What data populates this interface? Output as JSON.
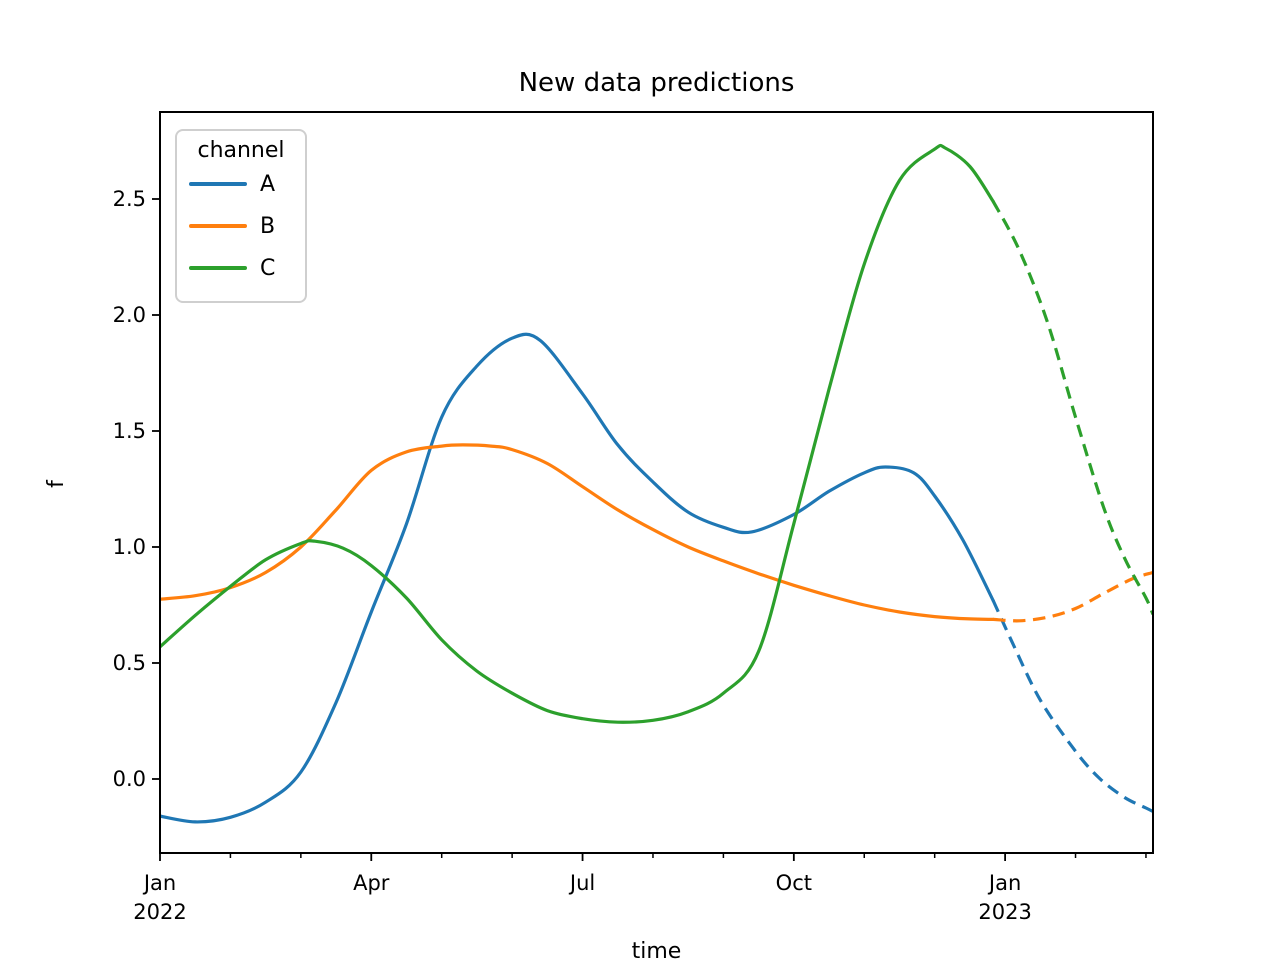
{
  "chart_data": {
    "type": "line",
    "title": "New data predictions",
    "xlabel": "time",
    "ylabel": "f",
    "x_axis": {
      "unit": "months since Jan 1 2022",
      "range": [
        0,
        14.1
      ],
      "major_ticks": [
        {
          "t": 0,
          "line1": "Jan",
          "line2": "2022"
        },
        {
          "t": 3,
          "line1": "Apr",
          "line2": ""
        },
        {
          "t": 6,
          "line1": "Jul",
          "line2": ""
        },
        {
          "t": 9,
          "line1": "Oct",
          "line2": ""
        },
        {
          "t": 12,
          "line1": "Jan",
          "line2": "2023"
        }
      ],
      "minor_tick_months": [
        1,
        2,
        4,
        5,
        7,
        8,
        10,
        11,
        13,
        14
      ]
    },
    "y_axis": {
      "range": [
        -0.319,
        2.875
      ],
      "tick_labels": [
        "0.0",
        "0.5",
        "1.0",
        "1.5",
        "2.0",
        "2.5"
      ],
      "tick_values": [
        0.0,
        0.5,
        1.0,
        1.5,
        2.0,
        2.5
      ]
    },
    "grid": false,
    "legend": {
      "title": "channel",
      "position": "upper left",
      "entries": [
        {
          "label": "A",
          "color": "#1f77b4"
        },
        {
          "label": "B",
          "color": "#ff7f0e"
        },
        {
          "label": "C",
          "color": "#2ca02c"
        }
      ]
    },
    "prediction_start_t": 11.83,
    "series": [
      {
        "name": "A",
        "color": "#1f77b4",
        "solid": [
          [
            0,
            -0.16
          ],
          [
            0.5,
            -0.185
          ],
          [
            1,
            -0.165
          ],
          [
            1.5,
            -0.1
          ],
          [
            2,
            0.03
          ],
          [
            2.5,
            0.33
          ],
          [
            3,
            0.72
          ],
          [
            3.5,
            1.1
          ],
          [
            4,
            1.56
          ],
          [
            4.5,
            1.78
          ],
          [
            5,
            1.9
          ],
          [
            5.4,
            1.89
          ],
          [
            6,
            1.66
          ],
          [
            6.5,
            1.44
          ],
          [
            7,
            1.28
          ],
          [
            7.5,
            1.15
          ],
          [
            8,
            1.085
          ],
          [
            8.4,
            1.065
          ],
          [
            9,
            1.14
          ],
          [
            9.5,
            1.24
          ],
          [
            10,
            1.32
          ],
          [
            10.3,
            1.345
          ],
          [
            10.7,
            1.32
          ],
          [
            11,
            1.22
          ],
          [
            11.4,
            1.03
          ],
          [
            11.83,
            0.77
          ]
        ],
        "dashed": [
          [
            11.83,
            0.77
          ],
          [
            12.1,
            0.59
          ],
          [
            12.5,
            0.34
          ],
          [
            13,
            0.12
          ],
          [
            13.35,
            0.0
          ],
          [
            13.7,
            -0.08
          ],
          [
            14,
            -0.125
          ],
          [
            14.1,
            -0.14
          ]
        ]
      },
      {
        "name": "B",
        "color": "#ff7f0e",
        "solid": [
          [
            0,
            0.775
          ],
          [
            0.5,
            0.79
          ],
          [
            1,
            0.825
          ],
          [
            1.5,
            0.89
          ],
          [
            2,
            1.0
          ],
          [
            2.5,
            1.16
          ],
          [
            3,
            1.33
          ],
          [
            3.5,
            1.41
          ],
          [
            4,
            1.435
          ],
          [
            4.3,
            1.44
          ],
          [
            4.7,
            1.435
          ],
          [
            5,
            1.42
          ],
          [
            5.5,
            1.36
          ],
          [
            6,
            1.26
          ],
          [
            6.5,
            1.16
          ],
          [
            7,
            1.075
          ],
          [
            7.5,
            1.0
          ],
          [
            8,
            0.94
          ],
          [
            8.5,
            0.885
          ],
          [
            9,
            0.835
          ],
          [
            9.5,
            0.79
          ],
          [
            10,
            0.75
          ],
          [
            10.5,
            0.72
          ],
          [
            11,
            0.7
          ],
          [
            11.5,
            0.69
          ],
          [
            11.83,
            0.688
          ]
        ],
        "dashed": [
          [
            11.83,
            0.688
          ],
          [
            12.2,
            0.682
          ],
          [
            12.6,
            0.697
          ],
          [
            13,
            0.735
          ],
          [
            13.4,
            0.8
          ],
          [
            13.8,
            0.862
          ],
          [
            14.1,
            0.89
          ]
        ]
      },
      {
        "name": "C",
        "color": "#2ca02c",
        "solid": [
          [
            0,
            0.57
          ],
          [
            0.5,
            0.705
          ],
          [
            1,
            0.83
          ],
          [
            1.5,
            0.945
          ],
          [
            2,
            1.015
          ],
          [
            2.2,
            1.025
          ],
          [
            2.6,
            0.995
          ],
          [
            3,
            0.92
          ],
          [
            3.5,
            0.78
          ],
          [
            4,
            0.6
          ],
          [
            4.5,
            0.465
          ],
          [
            5,
            0.37
          ],
          [
            5.5,
            0.295
          ],
          [
            6,
            0.26
          ],
          [
            6.5,
            0.245
          ],
          [
            7,
            0.253
          ],
          [
            7.5,
            0.29
          ],
          [
            8,
            0.37
          ],
          [
            8.5,
            0.55
          ],
          [
            9,
            1.1
          ],
          [
            9.5,
            1.68
          ],
          [
            10,
            2.22
          ],
          [
            10.5,
            2.58
          ],
          [
            11,
            2.715
          ],
          [
            11.15,
            2.72
          ],
          [
            11.5,
            2.64
          ],
          [
            11.83,
            2.49
          ]
        ],
        "dashed": [
          [
            11.83,
            2.49
          ],
          [
            12.2,
            2.28
          ],
          [
            12.6,
            1.97
          ],
          [
            13,
            1.56
          ],
          [
            13.4,
            1.17
          ],
          [
            13.7,
            0.95
          ],
          [
            14,
            0.78
          ],
          [
            14.1,
            0.71
          ]
        ]
      }
    ]
  }
}
